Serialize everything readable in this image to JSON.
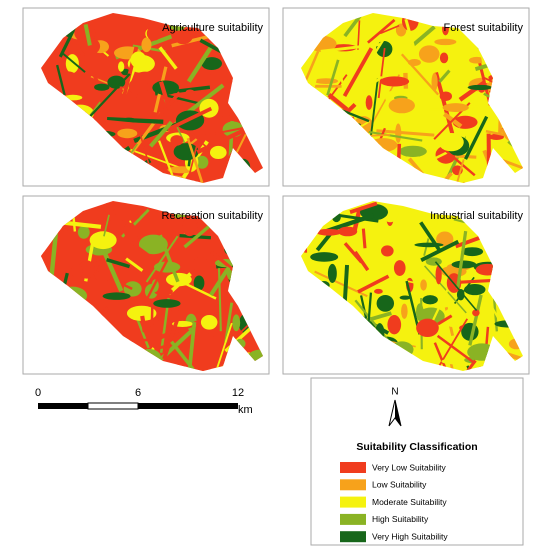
{
  "panels": [
    {
      "title": "Agriculture suitability"
    },
    {
      "title": "Forest suitability"
    },
    {
      "title": "Recreation suitability"
    },
    {
      "title": "Industrial suitability"
    }
  ],
  "scale_bar": {
    "labels": [
      "0",
      "6",
      "12"
    ],
    "unit": "km"
  },
  "legend": {
    "north": "N",
    "title": "Suitability Classification",
    "items": [
      {
        "label": "Very Low Suitability",
        "color": "#f03c1e"
      },
      {
        "label": "Low Suitability",
        "color": "#f7a21b"
      },
      {
        "label": "Moderate Suitability",
        "color": "#f5f20f"
      },
      {
        "label": "High Suitability",
        "color": "#8ab324"
      },
      {
        "label": "Very High Suitability",
        "color": "#17661a"
      }
    ]
  }
}
